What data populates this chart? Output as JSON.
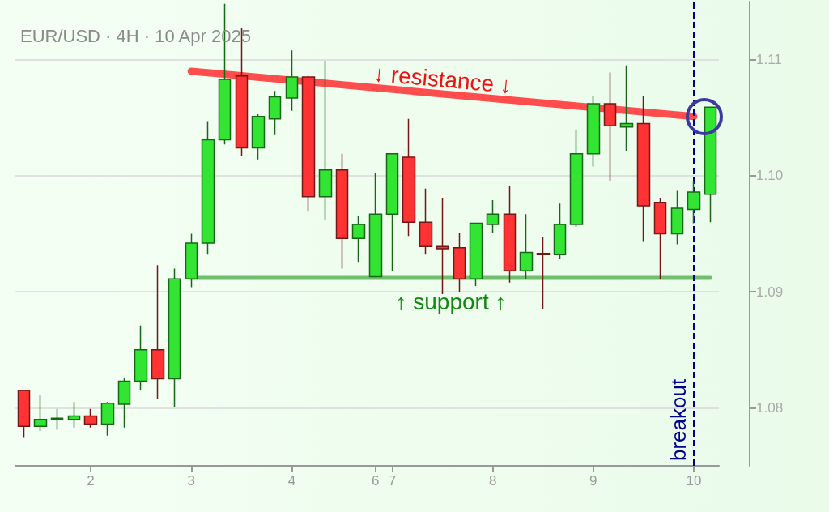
{
  "chart_data": {
    "type": "candlestick",
    "title": "EUR/USD · 4H · 10 Apr 2025",
    "categories": [
      null,
      null,
      null,
      null,
      "2",
      null,
      null,
      null,
      null,
      null,
      "3",
      null,
      null,
      null,
      null,
      null,
      "4",
      null,
      null,
      null,
      null,
      "6",
      "7",
      null,
      null,
      null,
      null,
      null,
      "8",
      null,
      null,
      null,
      null,
      null,
      "9",
      null,
      null,
      null,
      null,
      null,
      "10",
      null
    ],
    "ohlc": [
      [
        1.0815,
        1.0815,
        1.0774,
        1.0784
      ],
      [
        1.0784,
        1.0811,
        1.078,
        1.079
      ],
      [
        1.079,
        1.0799,
        1.0781,
        1.0791
      ],
      [
        1.079,
        1.0805,
        1.0783,
        1.0793
      ],
      [
        1.0793,
        1.0799,
        1.0783,
        1.0786
      ],
      [
        1.0786,
        1.0805,
        1.0776,
        1.0804
      ],
      [
        1.0803,
        1.0826,
        1.0783,
        1.0823
      ],
      [
        1.0823,
        1.0871,
        1.0815,
        1.085
      ],
      [
        1.085,
        1.0923,
        1.0808,
        1.0825
      ],
      [
        1.0825,
        1.092,
        1.0801,
        1.0911
      ],
      [
        1.0911,
        1.095,
        1.0904,
        1.0942
      ],
      [
        1.0942,
        1.1047,
        1.0932,
        1.1031
      ],
      [
        1.1031,
        1.1148,
        1.1027,
        1.1083
      ],
      [
        1.1086,
        1.1127,
        1.1017,
        1.1024
      ],
      [
        1.1024,
        1.1053,
        1.1014,
        1.1051
      ],
      [
        1.1049,
        1.1073,
        1.1035,
        1.1068
      ],
      [
        1.1067,
        1.1108,
        1.1056,
        1.1085
      ],
      [
        1.1085,
        1.1086,
        1.0969,
        1.0982
      ],
      [
        1.0982,
        1.1099,
        1.0962,
        1.1005
      ],
      [
        1.1005,
        1.1019,
        1.092,
        1.0946
      ],
      [
        1.0946,
        1.0965,
        1.0925,
        1.0958
      ],
      [
        1.0913,
        1.1002,
        1.0913,
        1.0967
      ],
      [
        1.0967,
        1.1019,
        1.0918,
        1.1019
      ],
      [
        1.1016,
        1.1049,
        1.0948,
        1.096
      ],
      [
        1.096,
        1.0989,
        1.0932,
        1.0939
      ],
      [
        1.0939,
        1.0981,
        1.0898,
        1.0937
      ],
      [
        1.0938,
        1.0951,
        1.09,
        1.0911
      ],
      [
        1.0911,
        1.0959,
        1.0905,
        1.0959
      ],
      [
        1.0958,
        1.0979,
        1.0951,
        1.0967
      ],
      [
        1.0967,
        1.0991,
        1.0908,
        1.0918
      ],
      [
        1.0918,
        1.0967,
        1.0911,
        1.0934
      ],
      [
        1.0933,
        1.0947,
        1.0885,
        1.0932
      ],
      [
        1.0932,
        1.0976,
        1.0928,
        1.0958
      ],
      [
        1.0958,
        1.1039,
        1.0956,
        1.1019
      ],
      [
        1.1019,
        1.1069,
        1.1008,
        1.1062
      ],
      [
        1.1062,
        1.1089,
        1.0995,
        1.1043
      ],
      [
        1.1042,
        1.1095,
        1.1021,
        1.1045
      ],
      [
        1.1045,
        1.1069,
        1.0943,
        1.0974
      ],
      [
        1.0977,
        1.0981,
        1.0911,
        1.095
      ],
      [
        1.095,
        1.0987,
        1.0941,
        1.0972
      ],
      [
        1.0971,
        1.0995,
        1.0959,
        1.0986
      ],
      [
        1.0984,
        1.1059,
        1.096,
        1.1059
      ]
    ],
    "colors": [
      "#ff3333",
      "#33e533",
      "#33e533",
      "#33e533",
      "#ff3333",
      "#33e533",
      "#33e533",
      "#33e533",
      "#ff3333",
      "#33e533",
      "#33e533",
      "#33e533",
      "#33e533",
      "#ff3333",
      "#33e533",
      "#33e533",
      "#33e533",
      "#ff3333",
      "#33e533",
      "#ff3333",
      "#33e533",
      "#33e533",
      "#33e533",
      "#ff3333",
      "#ff3333",
      "#ff3333",
      "#ff3333",
      "#33e533",
      "#33e533",
      "#ff3333",
      "#33e533",
      "#ff3333",
      "#33e533",
      "#33e533",
      "#33e533",
      "#ff3333",
      "#33e533",
      "#ff3333",
      "#ff3333",
      "#33e533",
      "#33e533",
      "#33e533"
    ],
    "series": [
      {
        "type": "line",
        "name": "↓ resistance ↓",
        "color": "#ff4d4d",
        "values": [
          null,
          null,
          null,
          null,
          null,
          null,
          null,
          null,
          null,
          null,
          1.109,
          null,
          null,
          null,
          null,
          null,
          null,
          null,
          null,
          null,
          null,
          null,
          null,
          null,
          null,
          null,
          null,
          null,
          null,
          null,
          null,
          null,
          null,
          null,
          null,
          null,
          null,
          null,
          null,
          null,
          1.1051,
          null
        ]
      },
      {
        "type": "line",
        "name": "↑ support ↑",
        "color": "#6fbf6f",
        "values": [
          null,
          null,
          null,
          null,
          null,
          null,
          null,
          null,
          null,
          null,
          1.0912,
          null,
          null,
          null,
          null,
          null,
          null,
          null,
          null,
          null,
          null,
          null,
          null,
          null,
          null,
          null,
          null,
          null,
          null,
          null,
          null,
          null,
          null,
          null,
          null,
          null,
          null,
          null,
          null,
          null,
          null,
          1.0912
        ]
      }
    ],
    "ref_lines": [
      {
        "axis": "x",
        "value": "10",
        "label": "breakout",
        "color": "#00008b",
        "line_style": "dashed"
      }
    ],
    "ylim": [
      1.075,
      1.115
    ],
    "yticks": [
      1.08,
      1.09,
      {
        "value": 1.1,
        "label": "1.10"
      },
      1.11
    ],
    "grid": "y",
    "legend": false,
    "marker": "none"
  }
}
